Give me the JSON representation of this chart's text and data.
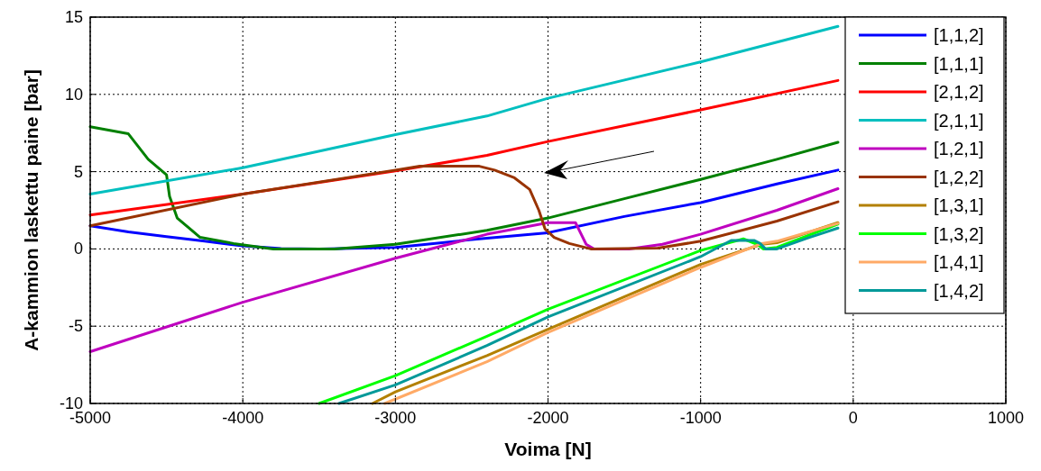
{
  "chart_data": {
    "type": "line",
    "xlabel": "Voima [N]",
    "ylabel": "A-kammion laskettu paine [bar]",
    "xlim": [
      -5000,
      1000
    ],
    "ylim": [
      -10,
      15
    ],
    "xticks": [
      -5000,
      -4000,
      -3000,
      -2000,
      -1000,
      0,
      1000
    ],
    "yticks": [
      -10,
      -5,
      0,
      5,
      10,
      15
    ],
    "grid": true,
    "legend": "top right",
    "line_style": "solid",
    "series": [
      {
        "name": "[1,1,2]",
        "color": "#0000ff",
        "x": [
          -5000,
          -4750,
          -4500,
          -4250,
          -4000,
          -3750,
          -3500,
          -3000,
          -2500,
          -2000,
          -1500,
          -1000,
          -500,
          -100
        ],
        "values": [
          1.5,
          1.1,
          0.8,
          0.5,
          0.2,
          0.02,
          0,
          0.1,
          0.6,
          1.05,
          2.1,
          3.0,
          4.2,
          5.1
        ]
      },
      {
        "name": "[1,1,1]",
        "color": "#008000",
        "x": [
          -5000,
          -4750,
          -4620,
          -4500,
          -4480,
          -4430,
          -4280,
          -4060,
          -3800,
          -3400,
          -3000,
          -2400,
          -2000,
          -1500,
          -1000,
          -500,
          -100
        ],
        "values": [
          7.9,
          7.45,
          5.8,
          4.8,
          3.4,
          2.0,
          0.75,
          0.35,
          0,
          0,
          0.3,
          1.2,
          2.0,
          3.25,
          4.5,
          5.8,
          6.9
        ]
      },
      {
        "name": "[2,1,2]",
        "color": "#ff0000",
        "x": [
          -5000,
          -4000,
          -3000,
          -2400,
          -2000,
          -1000,
          -100
        ],
        "values": [
          2.2,
          3.55,
          5.05,
          6.05,
          6.95,
          9.0,
          10.9
        ]
      },
      {
        "name": "[2,1,1]",
        "color": "#00bfbf",
        "x": [
          -5000,
          -4000,
          -3000,
          -2400,
          -2000,
          -1000,
          -100
        ],
        "values": [
          3.55,
          5.25,
          7.4,
          8.6,
          9.75,
          12.1,
          14.4
        ]
      },
      {
        "name": "[1,2,1]",
        "color": "#bf00bf",
        "x": [
          -5000,
          -4000,
          -3000,
          -2400,
          -2000,
          -1820,
          -1750,
          -1700,
          -1470,
          -1250,
          -1000,
          -500,
          -100
        ],
        "values": [
          -6.65,
          -3.45,
          -0.6,
          0.95,
          1.7,
          1.7,
          0.3,
          0,
          0,
          0.3,
          0.95,
          2.5,
          3.9
        ]
      },
      {
        "name": "[1,2,2]",
        "color": "#993300",
        "x": [
          -5000,
          -4000,
          -3000,
          -2840,
          -2450,
          -2350,
          -2220,
          -2120,
          -2060,
          -2020,
          -1960,
          -1860,
          -1720,
          -1280,
          -1000,
          -500,
          -100
        ],
        "values": [
          1.5,
          3.55,
          5.1,
          5.35,
          5.35,
          5.1,
          4.6,
          3.85,
          2.5,
          1.3,
          0.75,
          0.35,
          0,
          0.05,
          0.5,
          1.8,
          3.05
        ]
      },
      {
        "name": "[1,3,1]",
        "color": "#b38000",
        "x": [
          -3150,
          -3000,
          -2400,
          -2000,
          -1000,
          -600,
          -500,
          -100
        ],
        "values": [
          -10,
          -9.25,
          -6.9,
          -5.2,
          -1.0,
          0.3,
          0.4,
          1.7
        ]
      },
      {
        "name": "[1,3,2]",
        "color": "#00ff00",
        "x": [
          -3500,
          -3000,
          -2400,
          -2000,
          -1000,
          -720,
          -630,
          -590,
          -500,
          -100
        ],
        "values": [
          -10,
          -8.2,
          -5.65,
          -3.9,
          -0.1,
          0.65,
          0.3,
          0,
          0.1,
          1.6
        ]
      },
      {
        "name": "[1,4,1]",
        "color": "#ffaa66",
        "x": [
          -3070,
          -2400,
          -2000,
          -1000,
          -600,
          -500,
          -100
        ],
        "values": [
          -10,
          -7.3,
          -5.4,
          -1.2,
          0.35,
          0.5,
          1.65
        ]
      },
      {
        "name": "[1,4,2]",
        "color": "#009999",
        "x": [
          -3370,
          -3000,
          -2400,
          -2000,
          -1000,
          -800,
          -650,
          -610,
          -575,
          -500,
          -300,
          -100
        ],
        "values": [
          -10,
          -8.8,
          -6.25,
          -4.4,
          -0.5,
          0.55,
          0.55,
          0.35,
          0,
          0,
          0.7,
          1.35
        ]
      }
    ]
  }
}
